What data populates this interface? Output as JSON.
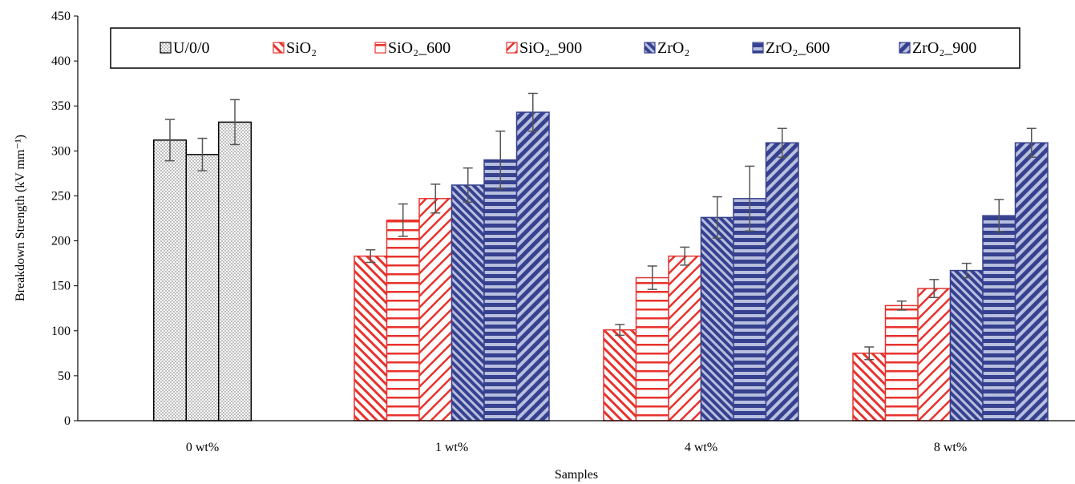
{
  "chart_data": {
    "type": "bar",
    "xlabel": "Samples",
    "ylabel": "Breakdown Strength (kV mm⁻¹)",
    "ylim": [
      0,
      450
    ],
    "yticks": [
      0,
      50,
      100,
      150,
      200,
      250,
      300,
      350,
      400,
      450
    ],
    "grid": false,
    "legend_position": "top",
    "categories": [
      "0 wt%",
      "1 wt%",
      "4 wt%",
      "8 wt%"
    ],
    "baseline_series": {
      "name": "U/0/0",
      "category": "0 wt%",
      "values": [
        312,
        296,
        332
      ],
      "errors": [
        23,
        18,
        25
      ]
    },
    "series": [
      {
        "name": "SiO₂",
        "color": "#e8322d",
        "pattern": "diag-thin",
        "values": [
          null,
          183,
          101,
          75
        ],
        "errors": [
          null,
          7,
          6,
          7
        ]
      },
      {
        "name": "SiO₂_600",
        "color": "#e8322d",
        "pattern": "horizontal",
        "values": [
          null,
          223,
          159,
          128
        ],
        "errors": [
          null,
          18,
          13,
          5
        ]
      },
      {
        "name": "SiO₂_900",
        "color": "#e8322d",
        "pattern": "diag-wide",
        "values": [
          null,
          247,
          183,
          147
        ],
        "errors": [
          null,
          16,
          10,
          10
        ]
      },
      {
        "name": "ZrO₂",
        "color": "#36418f",
        "pattern": "diag-thin",
        "values": [
          null,
          262,
          226,
          167
        ],
        "errors": [
          null,
          19,
          23,
          8
        ]
      },
      {
        "name": "ZrO₂_600",
        "color": "#36418f",
        "pattern": "horizontal",
        "values": [
          null,
          290,
          247,
          228
        ],
        "errors": [
          null,
          32,
          36,
          18
        ]
      },
      {
        "name": "ZrO₂_900",
        "color": "#36418f",
        "pattern": "diag-wide",
        "values": [
          null,
          343,
          309,
          309
        ],
        "errors": [
          null,
          21,
          16,
          16
        ]
      }
    ],
    "legend_entries": [
      "U/0/0",
      "SiO₂",
      "SiO₂_600",
      "SiO₂_900",
      "ZrO₂",
      "ZrO₂_600",
      "ZrO₂_900"
    ]
  }
}
